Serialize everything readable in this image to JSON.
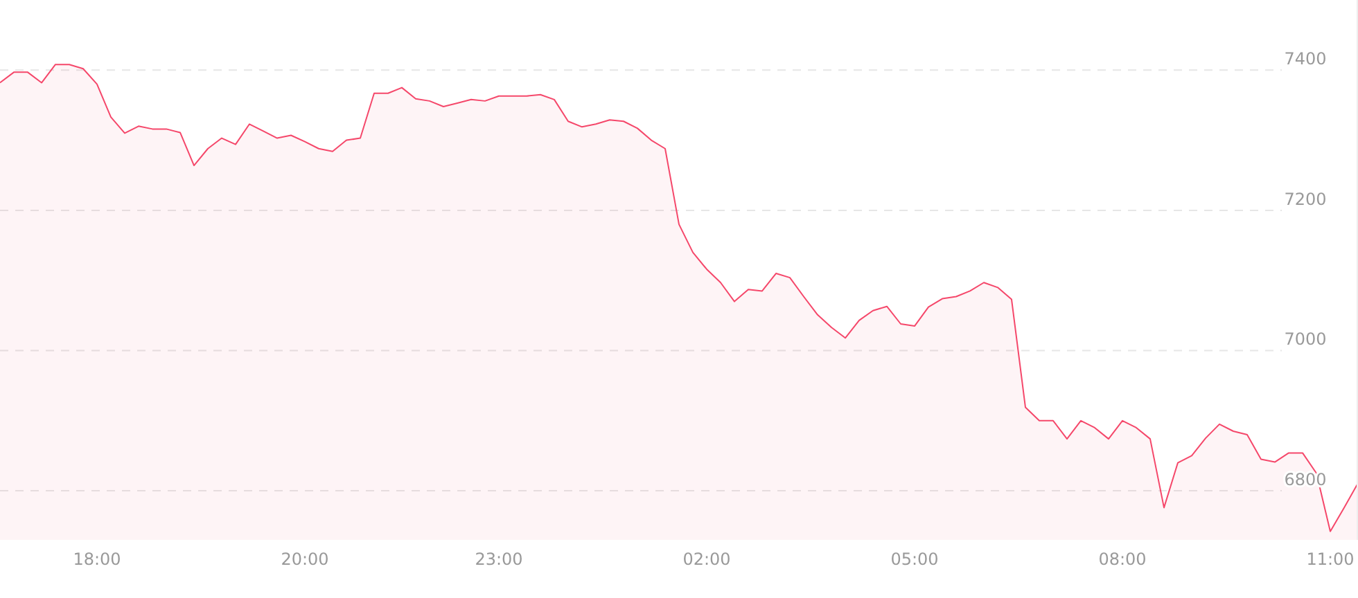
{
  "chart_data": {
    "type": "area",
    "grid": "y",
    "ylim": [
      6730,
      7500
    ],
    "yticks": [
      6800,
      7000,
      7200,
      7400
    ],
    "categories": [
      null,
      null,
      null,
      null,
      null,
      null,
      null,
      "18:00",
      null,
      null,
      null,
      null,
      null,
      null,
      null,
      null,
      null,
      null,
      null,
      null,
      null,
      null,
      "20:00",
      null,
      null,
      null,
      null,
      null,
      null,
      null,
      null,
      null,
      null,
      null,
      null,
      null,
      "23:00",
      null,
      null,
      null,
      null,
      null,
      null,
      null,
      null,
      null,
      null,
      null,
      null,
      null,
      null,
      "02:00",
      null,
      null,
      null,
      null,
      null,
      null,
      null,
      null,
      null,
      null,
      null,
      null,
      null,
      null,
      "05:00",
      null,
      null,
      null,
      null,
      null,
      null,
      null,
      null,
      null,
      null,
      null,
      null,
      null,
      null,
      "08:00",
      null,
      null,
      null,
      null,
      null,
      null,
      null,
      null,
      null,
      null,
      null,
      null,
      null,
      null,
      "11:00",
      null,
      null
    ],
    "series": [
      {
        "color": "#f5476a",
        "values": [
          7382,
          7397,
          7397,
          7382,
          7408,
          7408,
          7402,
          7380,
          7333,
          7310,
          7320,
          7316,
          7316,
          7311,
          7264,
          7288,
          7303,
          7294,
          7323,
          7313,
          7303,
          7307,
          7298,
          7288,
          7284,
          7300,
          7303,
          7367,
          7367,
          7375,
          7359,
          7356,
          7348,
          7353,
          7358,
          7356,
          7363,
          7363,
          7363,
          7365,
          7358,
          7327,
          7319,
          7323,
          7329,
          7327,
          7317,
          7300,
          7288,
          7180,
          7140,
          7116,
          7097,
          7070,
          7087,
          7085,
          7110,
          7104,
          7077,
          7051,
          7033,
          7018,
          7043,
          7057,
          7063,
          7038,
          7035,
          7062,
          7074,
          7077,
          7085,
          7097,
          7090,
          7073,
          6919,
          6900,
          6900,
          6874,
          6900,
          6890,
          6874,
          6900,
          6890,
          6874,
          6776,
          6840,
          6850,
          6875,
          6895,
          6885,
          6880,
          6845,
          6841,
          6854,
          6854,
          6825,
          6742,
          6776,
          6811
        ]
      }
    ]
  }
}
